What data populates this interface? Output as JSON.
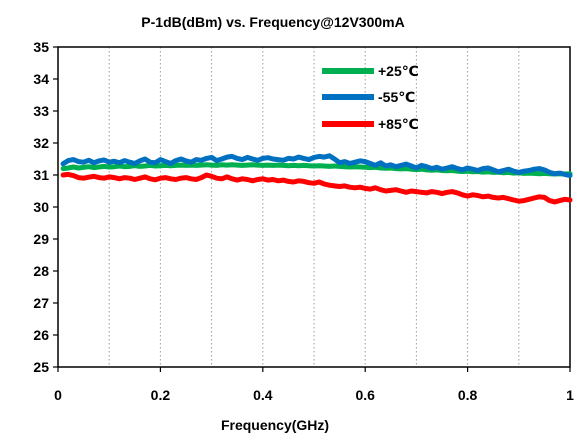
{
  "chart_data": {
    "type": "line",
    "title": "P-1dB(dBm) vs. Frequency@12V300mA",
    "xlabel": "Frequency(GHz)",
    "ylabel": "",
    "xlim": [
      0,
      1
    ],
    "ylim": [
      25,
      35
    ],
    "x_ticks": [
      "0",
      "0.2",
      "0.4",
      "0.6",
      "0.8",
      "1"
    ],
    "y_ticks": [
      "25",
      "26",
      "27",
      "28",
      "29",
      "30",
      "31",
      "32",
      "33",
      "34",
      "35"
    ],
    "grid": "vertical dotted",
    "legend_position": "top-right",
    "x": [
      0.01,
      0.02,
      0.03,
      0.04,
      0.05,
      0.06,
      0.07,
      0.08,
      0.09,
      0.1,
      0.11,
      0.12,
      0.13,
      0.14,
      0.15,
      0.16,
      0.17,
      0.18,
      0.19,
      0.2,
      0.21,
      0.22,
      0.23,
      0.24,
      0.25,
      0.26,
      0.27,
      0.28,
      0.29,
      0.3,
      0.31,
      0.32,
      0.33,
      0.34,
      0.35,
      0.36,
      0.37,
      0.38,
      0.39,
      0.4,
      0.41,
      0.42,
      0.43,
      0.44,
      0.45,
      0.46,
      0.47,
      0.48,
      0.49,
      0.5,
      0.51,
      0.52,
      0.53,
      0.54,
      0.55,
      0.56,
      0.57,
      0.58,
      0.59,
      0.6,
      0.61,
      0.62,
      0.63,
      0.64,
      0.65,
      0.66,
      0.67,
      0.68,
      0.69,
      0.7,
      0.71,
      0.72,
      0.73,
      0.74,
      0.75,
      0.76,
      0.77,
      0.78,
      0.79,
      0.8,
      0.81,
      0.82,
      0.83,
      0.84,
      0.85,
      0.86,
      0.87,
      0.88,
      0.89,
      0.9,
      0.91,
      0.92,
      0.93,
      0.94,
      0.95,
      0.96,
      0.97,
      0.98,
      0.99,
      1.0
    ],
    "series": [
      {
        "name": "+25℃",
        "color": "#00b050",
        "values": [
          31.2,
          31.22,
          31.25,
          31.22,
          31.24,
          31.26,
          31.23,
          31.25,
          31.27,
          31.25,
          31.26,
          31.28,
          31.26,
          31.27,
          31.29,
          31.27,
          31.28,
          31.3,
          31.28,
          31.29,
          31.3,
          31.29,
          31.3,
          31.31,
          31.3,
          31.31,
          31.3,
          31.31,
          31.32,
          31.31,
          31.3,
          31.32,
          31.31,
          31.32,
          31.31,
          31.3,
          31.31,
          31.32,
          31.31,
          31.3,
          31.31,
          31.3,
          31.31,
          31.3,
          31.29,
          31.3,
          31.29,
          31.3,
          31.29,
          31.28,
          31.29,
          31.28,
          31.27,
          31.28,
          31.27,
          31.26,
          31.25,
          31.26,
          31.25,
          31.24,
          31.23,
          31.24,
          31.22,
          31.21,
          31.22,
          31.2,
          31.19,
          31.2,
          31.18,
          31.17,
          31.18,
          31.16,
          31.15,
          31.16,
          31.14,
          31.13,
          31.14,
          31.12,
          31.11,
          31.12,
          31.1,
          31.11,
          31.09,
          31.1,
          31.08,
          31.09,
          31.07,
          31.08,
          31.06,
          31.07,
          31.05,
          31.06,
          31.05,
          31.04,
          31.05,
          31.04,
          31.03,
          31.04,
          31.03,
          31.04
        ]
      },
      {
        "name": "-55℃",
        "color": "#0070c0",
        "values": [
          31.35,
          31.45,
          31.48,
          31.42,
          31.4,
          31.46,
          31.38,
          31.44,
          31.47,
          31.4,
          31.43,
          31.38,
          31.45,
          31.4,
          31.36,
          31.44,
          31.5,
          31.4,
          31.38,
          31.48,
          31.42,
          31.36,
          31.45,
          31.5,
          31.44,
          31.4,
          31.48,
          31.46,
          31.52,
          31.55,
          31.45,
          31.5,
          31.56,
          31.58,
          31.52,
          31.48,
          31.55,
          31.5,
          31.46,
          31.52,
          31.54,
          31.5,
          31.48,
          31.46,
          31.52,
          31.5,
          31.56,
          31.52,
          31.48,
          31.55,
          31.58,
          31.56,
          31.6,
          31.5,
          31.38,
          31.42,
          31.36,
          31.4,
          31.44,
          31.42,
          31.36,
          31.3,
          31.38,
          31.28,
          31.32,
          31.26,
          31.3,
          31.34,
          31.28,
          31.22,
          31.3,
          31.26,
          31.2,
          31.24,
          31.18,
          31.22,
          31.26,
          31.2,
          31.16,
          31.22,
          31.18,
          31.14,
          31.2,
          31.22,
          31.16,
          31.1,
          31.14,
          31.18,
          31.12,
          31.08,
          31.12,
          31.14,
          31.18,
          31.2,
          31.16,
          31.08,
          31.04,
          31.06,
          31.02,
          30.98
        ]
      },
      {
        "name": "+85℃",
        "color": "#ff0000",
        "values": [
          31.0,
          31.02,
          30.98,
          30.92,
          30.9,
          30.93,
          30.96,
          30.92,
          30.9,
          30.94,
          30.92,
          30.88,
          30.92,
          30.9,
          30.86,
          30.9,
          30.94,
          30.88,
          30.85,
          30.9,
          30.92,
          30.88,
          30.86,
          30.9,
          30.92,
          30.88,
          30.86,
          30.92,
          31.0,
          30.96,
          30.9,
          30.88,
          30.94,
          30.88,
          30.84,
          30.88,
          30.86,
          30.82,
          30.86,
          30.88,
          30.84,
          30.86,
          30.82,
          30.84,
          30.8,
          30.78,
          30.82,
          30.8,
          30.76,
          30.74,
          30.78,
          30.72,
          30.68,
          30.66,
          30.64,
          30.66,
          30.62,
          30.6,
          30.62,
          30.58,
          30.56,
          30.6,
          30.54,
          30.5,
          30.52,
          30.54,
          30.5,
          30.46,
          30.5,
          30.48,
          30.46,
          30.44,
          30.48,
          30.46,
          30.42,
          30.46,
          30.48,
          30.44,
          30.38,
          30.34,
          30.38,
          30.36,
          30.32,
          30.34,
          30.3,
          30.28,
          30.3,
          30.26,
          30.22,
          30.18,
          30.2,
          30.24,
          30.28,
          30.32,
          30.3,
          30.2,
          30.16,
          30.2,
          30.24,
          30.22
        ]
      }
    ]
  }
}
